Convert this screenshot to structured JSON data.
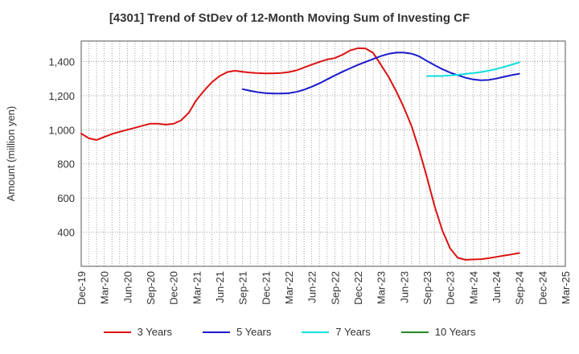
{
  "chart_data": {
    "type": "line",
    "title": "[4301]  Trend of StDev of 12-Month Moving Sum of Investing CF",
    "xlabel": "",
    "ylabel": "Amount (million yen)",
    "ylim": [
      200,
      1520
    ],
    "yticks": [
      400,
      600,
      800,
      1000,
      1200,
      1400
    ],
    "ytick_labels": [
      "400",
      "600",
      "800",
      "1,000",
      "1,200",
      "1,400"
    ],
    "xlim": [
      "Dec-19",
      "Mar-25"
    ],
    "xtick_labels": [
      "Dec-19",
      "Mar-20",
      "Jun-20",
      "Sep-20",
      "Dec-20",
      "Mar-21",
      "Jun-21",
      "Sep-21",
      "Dec-21",
      "Mar-22",
      "Jun-22",
      "Sep-22",
      "Dec-22",
      "Mar-23",
      "Jun-23",
      "Sep-23",
      "Dec-23",
      "Mar-24",
      "Jun-24",
      "Sep-24",
      "Dec-24",
      "Mar-25"
    ],
    "grid": true,
    "legend_position": "bottom",
    "series": [
      {
        "name": "3 Years",
        "color": "#dd1111",
        "x": [
          "Dec-19",
          "Jan-20",
          "Feb-20",
          "Mar-20",
          "Apr-20",
          "May-20",
          "Jun-20",
          "Jul-20",
          "Aug-20",
          "Sep-20",
          "Oct-20",
          "Nov-20",
          "Dec-20",
          "Jan-21",
          "Feb-21",
          "Mar-21",
          "Apr-21",
          "May-21",
          "Jun-21",
          "Jul-21",
          "Aug-21",
          "Sep-21",
          "Oct-21",
          "Nov-21",
          "Dec-21",
          "Jan-22",
          "Feb-22",
          "Mar-22",
          "Apr-22",
          "May-22",
          "Jun-22",
          "Jul-22",
          "Aug-22",
          "Sep-22",
          "Oct-22",
          "Nov-22",
          "Dec-22",
          "Jan-23",
          "Feb-23",
          "Mar-23",
          "Apr-23",
          "May-23",
          "Jun-23",
          "Jul-23",
          "Aug-23",
          "Sep-23",
          "Oct-23",
          "Nov-23",
          "Dec-23",
          "Jan-24",
          "Feb-24",
          "Mar-24",
          "Apr-24",
          "May-24",
          "Jun-24",
          "Jul-24",
          "Aug-24",
          "Sep-24"
        ],
        "values": [
          978,
          950,
          940,
          958,
          975,
          988,
          1000,
          1012,
          1024,
          1036,
          1036,
          1030,
          1035,
          1055,
          1100,
          1175,
          1230,
          1278,
          1315,
          1338,
          1346,
          1340,
          1335,
          1332,
          1330,
          1331,
          1333,
          1338,
          1348,
          1365,
          1382,
          1398,
          1412,
          1420,
          1440,
          1465,
          1478,
          1476,
          1450,
          1380,
          1310,
          1225,
          1130,
          1020,
          880,
          720,
          550,
          410,
          305,
          250,
          238,
          240,
          242,
          247,
          255,
          262,
          270,
          278
        ]
      },
      {
        "name": "5 Years",
        "color": "#1a1acc",
        "x": [
          "Sep-21",
          "Oct-21",
          "Nov-21",
          "Dec-21",
          "Jan-22",
          "Feb-22",
          "Mar-22",
          "Apr-22",
          "May-22",
          "Jun-22",
          "Jul-22",
          "Aug-22",
          "Sep-22",
          "Oct-22",
          "Nov-22",
          "Dec-22",
          "Jan-23",
          "Feb-23",
          "Mar-23",
          "Apr-23",
          "May-23",
          "Jun-23",
          "Jul-23",
          "Aug-23",
          "Sep-23",
          "Oct-23",
          "Nov-23",
          "Dec-23",
          "Jan-24",
          "Feb-24",
          "Mar-24",
          "Apr-24",
          "May-24",
          "Jun-24",
          "Jul-24",
          "Aug-24",
          "Sep-24"
        ],
        "values": [
          1238,
          1228,
          1220,
          1215,
          1212,
          1212,
          1214,
          1222,
          1235,
          1252,
          1272,
          1295,
          1318,
          1340,
          1360,
          1380,
          1398,
          1415,
          1432,
          1445,
          1452,
          1452,
          1446,
          1430,
          1403,
          1378,
          1355,
          1335,
          1320,
          1305,
          1295,
          1290,
          1292,
          1300,
          1310,
          1320,
          1328
        ]
      },
      {
        "name": "7 Years",
        "color": "#11dddd",
        "x": [
          "Sep-23",
          "Oct-23",
          "Nov-23",
          "Dec-23",
          "Jan-24",
          "Feb-24",
          "Mar-24",
          "Apr-24",
          "May-24",
          "Jun-24",
          "Jul-24",
          "Aug-24",
          "Sep-24"
        ],
        "values": [
          1315,
          1315,
          1315,
          1318,
          1322,
          1327,
          1332,
          1338,
          1346,
          1356,
          1368,
          1381,
          1395
        ]
      },
      {
        "name": "10 Years",
        "color": "#228822",
        "x": [],
        "values": []
      }
    ]
  }
}
